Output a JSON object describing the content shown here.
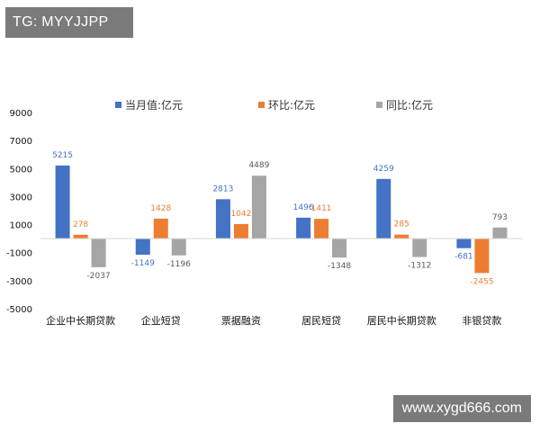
{
  "watermark_top": "TG: MYYJJPP",
  "watermark_bottom": "www.xygd666.com",
  "chart_data": {
    "type": "bar",
    "categories": [
      "企业中长期贷款",
      "企业短贷",
      "票据融资",
      "居民短贷",
      "居民中长期贷款",
      "非银贷款"
    ],
    "series": [
      {
        "name": "当月值:亿元",
        "color": "#4472c4",
        "values": [
          5215,
          -1149,
          2813,
          1496,
          4259,
          -681
        ]
      },
      {
        "name": "环比:亿元",
        "color": "#ed7d31",
        "values": [
          278,
          1428,
          1042,
          1411,
          285,
          -2455
        ]
      },
      {
        "name": "同比:亿元",
        "color": "#a5a5a5",
        "values": [
          -2037,
          -1196,
          4489,
          -1348,
          -1312,
          793
        ]
      }
    ],
    "yticks": [
      9000,
      7000,
      5000,
      3000,
      1000,
      -1000,
      -3000,
      -5000
    ],
    "ylim": [
      -5000,
      9000
    ],
    "legend_position": "top",
    "grid": false
  }
}
